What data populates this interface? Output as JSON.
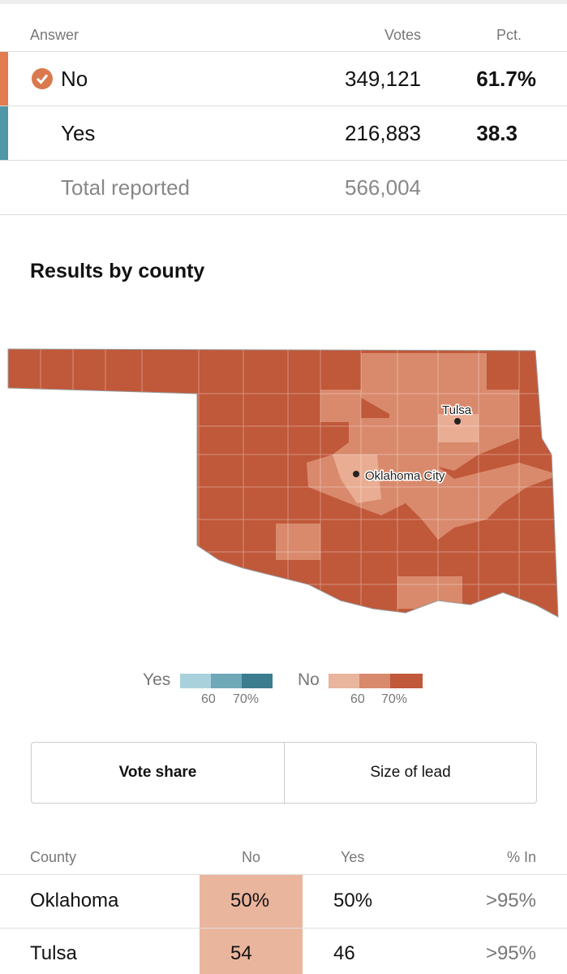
{
  "results_table": {
    "headers": [
      "Answer",
      "Votes",
      "Pct."
    ],
    "rows": [
      {
        "answer": "No",
        "votes": "349,121",
        "pct": "61.7%"
      },
      {
        "answer": "Yes",
        "votes": "216,883",
        "pct": "38.3"
      }
    ],
    "total": {
      "label": "Total reported",
      "votes": "566,004"
    }
  },
  "section_title": "Results by county",
  "map": {
    "cities": [
      "Tulsa",
      "Oklahoma City"
    ]
  },
  "legend": {
    "yes": {
      "label": "Yes",
      "ticks": [
        "60",
        "70%"
      ]
    },
    "no": {
      "label": "No",
      "ticks": [
        "60",
        "70%"
      ]
    }
  },
  "tabs": [
    "Vote share",
    "Size of lead"
  ],
  "county_table": {
    "headers": [
      "County",
      "No",
      "Yes",
      "% In"
    ],
    "rows": [
      [
        "Oklahoma",
        "50%",
        "50%",
        ">95%"
      ],
      [
        "Tulsa",
        "54",
        "46",
        ">95%"
      ]
    ]
  }
}
